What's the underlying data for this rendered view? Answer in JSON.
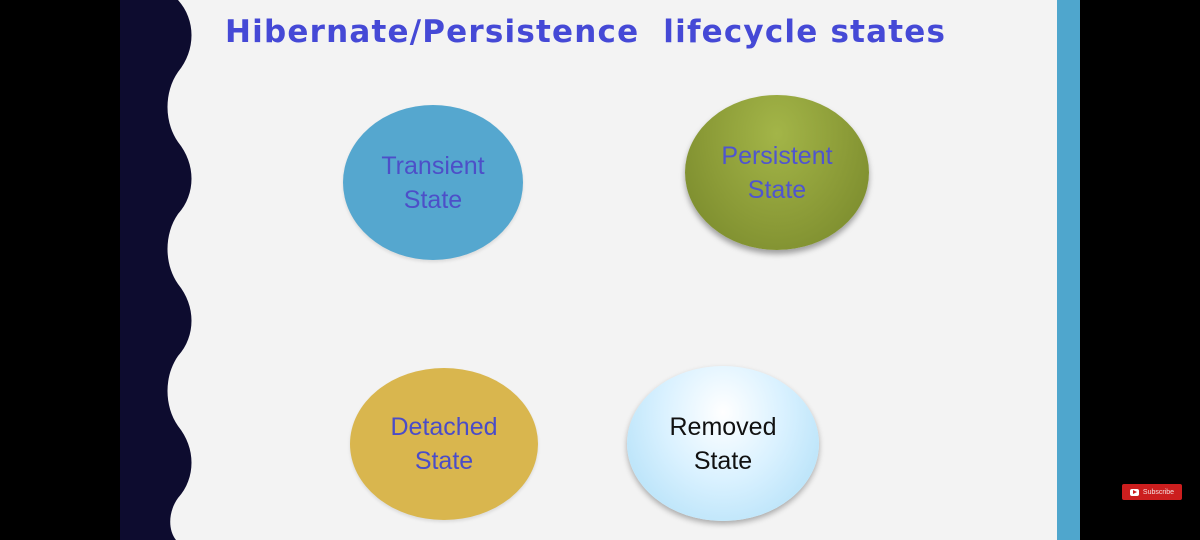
{
  "slide": {
    "title": "Hibernate/Persistence  lifecycle states"
  },
  "diagram": {
    "nodes": [
      {
        "id": "transient",
        "label": "Transient\nState"
      },
      {
        "id": "persistent",
        "label": "Persistent\nState"
      },
      {
        "id": "detached",
        "label": "Detached\nState"
      },
      {
        "id": "removed",
        "label": "Removed\nState"
      }
    ]
  },
  "overlay": {
    "subscribe_label": "Subscribe"
  },
  "colors": {
    "title": "#4549d6",
    "wave_band": "#0d0c2f",
    "right_bar": "#4fa6cd",
    "transient": "#55a7cf",
    "persistent": "#8b9b37",
    "detached": "#d9b64e",
    "removed": "#d9f1ff"
  }
}
